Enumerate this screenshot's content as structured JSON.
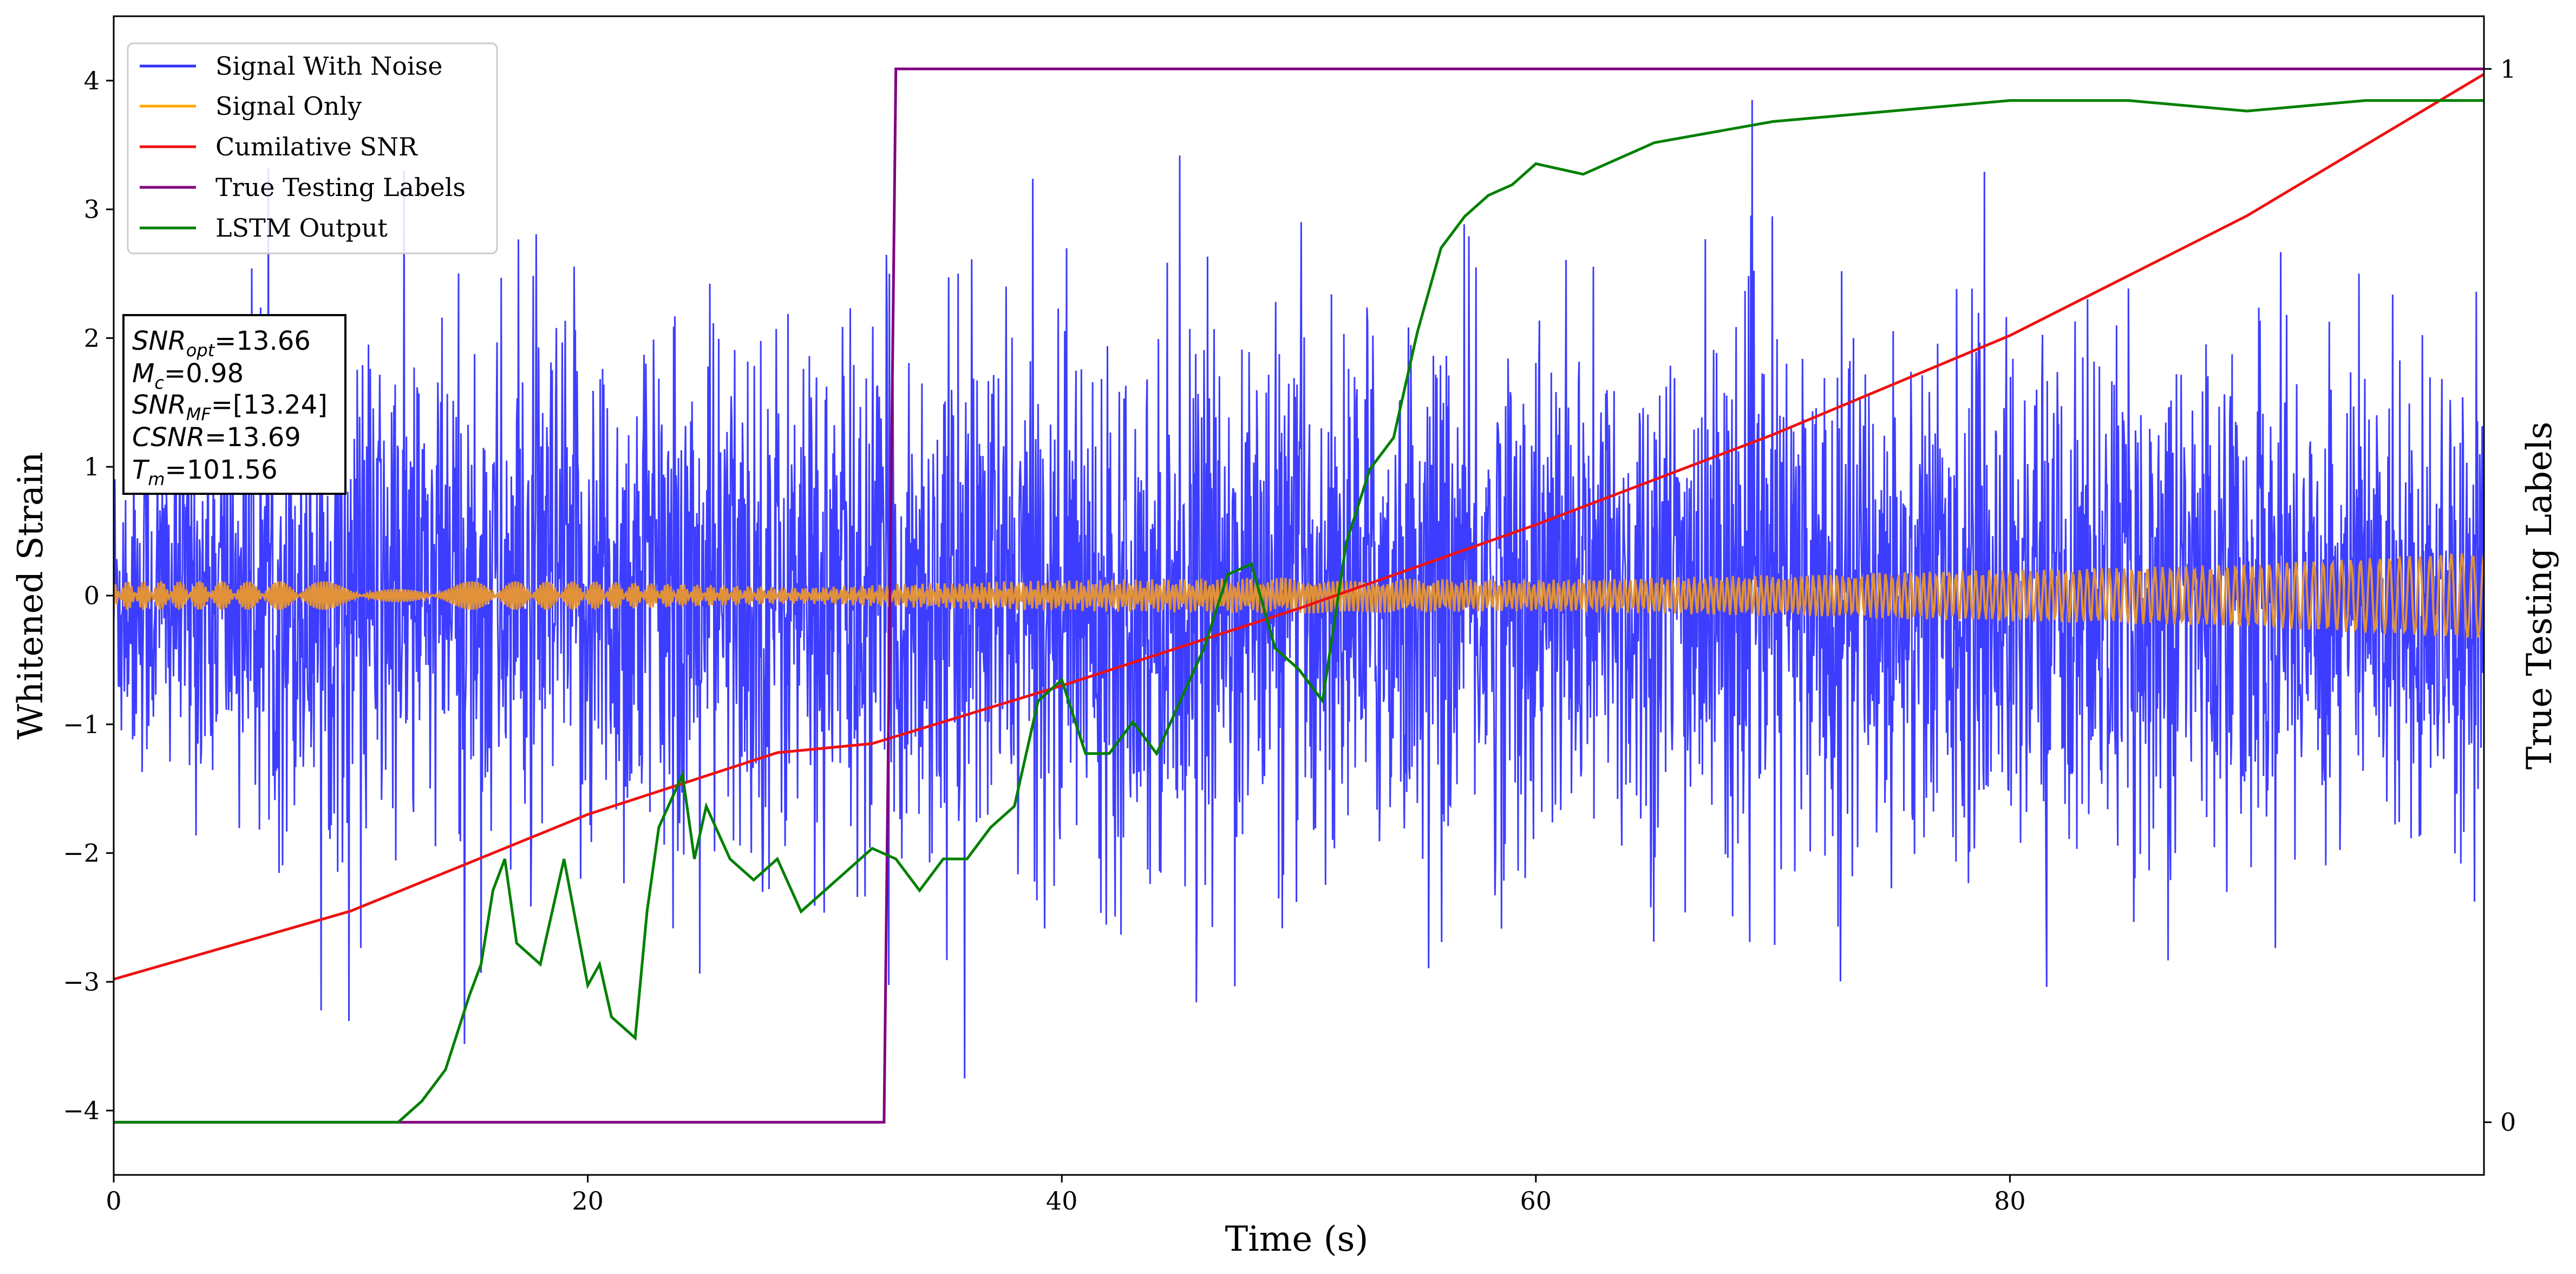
{
  "chart_data": {
    "type": "line",
    "xlabel": "Time (s)",
    "ylabel": "Whitened Strain",
    "y2label": "True Testing Labels",
    "xlim": [
      0,
      100
    ],
    "ylim": [
      -4.5,
      4.5
    ],
    "y2lim": [
      -0.05,
      1.05
    ],
    "xticks": [
      "0",
      "20",
      "40",
      "60",
      "80"
    ],
    "yticks": [
      "-4",
      "-3",
      "-2",
      "-1",
      "0",
      "1",
      "2",
      "3",
      "4"
    ],
    "y2ticks": [
      "0",
      "1"
    ],
    "grid": false,
    "legend_position": "top-left",
    "annotation": {
      "snr_opt": "13.66",
      "mc": "0.98",
      "snr_mf": "[13.24]",
      "csnr": "13.69",
      "tm": "101.56"
    },
    "series": [
      {
        "name": "Signal With Noise",
        "axis": "left",
        "color": "#3333ff",
        "description_envelope": "noise band roughly -2.5..2.5 with spikes to about +/-3.8",
        "envelope_upper_approx": [
          [
            0,
            1.5
          ],
          [
            10,
            2.3
          ],
          [
            20,
            2.5
          ],
          [
            30,
            2.4
          ],
          [
            40,
            2.3
          ],
          [
            50,
            2.3
          ],
          [
            60,
            2.4
          ],
          [
            70,
            2.3
          ],
          [
            80,
            2.3
          ],
          [
            90,
            2.2
          ],
          [
            100,
            2.0
          ]
        ],
        "envelope_lower_approx": [
          [
            0,
            -1.5
          ],
          [
            10,
            -2.3
          ],
          [
            20,
            -2.4
          ],
          [
            30,
            -2.3
          ],
          [
            40,
            -2.3
          ],
          [
            50,
            -2.4
          ],
          [
            60,
            -2.3
          ],
          [
            70,
            -2.4
          ],
          [
            80,
            -2.3
          ],
          [
            90,
            -2.3
          ],
          [
            100,
            -2.0
          ]
        ]
      },
      {
        "name": "Signal Only",
        "axis": "left",
        "color": "#ff9900",
        "envelope_approx": [
          [
            0,
            0.11
          ],
          [
            20,
            0.11
          ],
          [
            29,
            0.06
          ],
          [
            33,
            0.09
          ],
          [
            40,
            0.12
          ],
          [
            50,
            0.14
          ],
          [
            60,
            0.12
          ],
          [
            70,
            0.16
          ],
          [
            80,
            0.2
          ],
          [
            90,
            0.24
          ],
          [
            99,
            0.33
          ]
        ]
      },
      {
        "name": "Cumilative SNR",
        "axis": "left",
        "color": "#ee1111",
        "x": [
          0,
          10,
          20,
          28,
          32,
          40,
          50,
          60,
          70,
          80,
          90,
          100
        ],
        "y": [
          -2.98,
          -2.45,
          -1.7,
          -1.22,
          -1.15,
          -0.7,
          -0.1,
          0.55,
          1.25,
          2.02,
          2.95,
          4.05
        ]
      },
      {
        "name": "True Testing Labels",
        "axis": "right",
        "color": "#800080",
        "x": [
          0,
          32.5,
          33.0,
          100
        ],
        "y": [
          0,
          0,
          1,
          1
        ]
      },
      {
        "name": "LSTM Output",
        "axis": "right",
        "color": "#008000",
        "x": [
          0,
          12,
          13,
          14,
          15,
          15.5,
          16,
          16.5,
          17,
          18,
          19,
          20,
          20.5,
          21,
          22,
          22.5,
          23,
          24,
          24.5,
          25,
          26,
          27,
          28,
          29,
          30,
          32,
          33,
          34,
          35,
          36,
          37,
          38,
          39,
          40,
          41,
          42,
          43,
          44,
          45,
          46,
          47,
          48,
          49,
          50,
          51,
          52,
          53,
          54,
          55,
          56,
          57,
          58,
          59,
          60,
          62,
          65,
          70,
          75,
          80,
          85,
          90,
          95,
          100
        ],
        "y": [
          0,
          0.0,
          0.02,
          0.05,
          0.12,
          0.15,
          0.22,
          0.25,
          0.17,
          0.15,
          0.25,
          0.13,
          0.15,
          0.1,
          0.08,
          0.2,
          0.28,
          0.33,
          0.25,
          0.3,
          0.25,
          0.23,
          0.25,
          0.2,
          0.22,
          0.26,
          0.25,
          0.22,
          0.25,
          0.25,
          0.28,
          0.3,
          0.4,
          0.42,
          0.35,
          0.35,
          0.38,
          0.35,
          0.4,
          0.45,
          0.52,
          0.53,
          0.45,
          0.43,
          0.4,
          0.55,
          0.62,
          0.65,
          0.75,
          0.83,
          0.86,
          0.88,
          0.89,
          0.91,
          0.9,
          0.93,
          0.95,
          0.96,
          0.97,
          0.97,
          0.96,
          0.97,
          0.97
        ]
      }
    ]
  }
}
